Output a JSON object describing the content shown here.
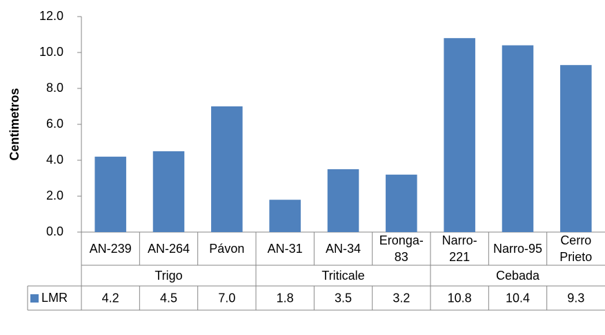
{
  "chart_data": {
    "type": "bar",
    "y_label": "Centimetros",
    "groups": [
      {
        "name": "Trigo",
        "categories": [
          "AN-239",
          "AN-264",
          "Pávon"
        ]
      },
      {
        "name": "Triticale",
        "categories": [
          "AN-31",
          "AN-34",
          "Eronga-83"
        ]
      },
      {
        "name": "Cebada",
        "categories": [
          "Narro-221",
          "Narro-95",
          "Cerro Prieto"
        ]
      }
    ],
    "series": [
      {
        "name": "LMR",
        "color": "#4f81bd",
        "values": [
          4.2,
          4.5,
          7.0,
          1.8,
          3.5,
          3.2,
          10.8,
          10.4,
          9.3
        ],
        "value_labels": [
          "4.2",
          "4.5",
          "7.0",
          "1.8",
          "3.5",
          "3.2",
          "10.8",
          "10.4",
          "9.3"
        ]
      }
    ],
    "ylim": [
      0,
      12
    ],
    "yticks": [
      {
        "value": 0,
        "label": "0.0"
      },
      {
        "value": 2,
        "label": "2.0"
      },
      {
        "value": 4,
        "label": "4.0"
      },
      {
        "value": 6,
        "label": "6.0"
      },
      {
        "value": 8,
        "label": "8.0"
      },
      {
        "value": 10,
        "label": "10.0"
      },
      {
        "value": 12,
        "label": "12.0"
      }
    ],
    "grid": false
  }
}
